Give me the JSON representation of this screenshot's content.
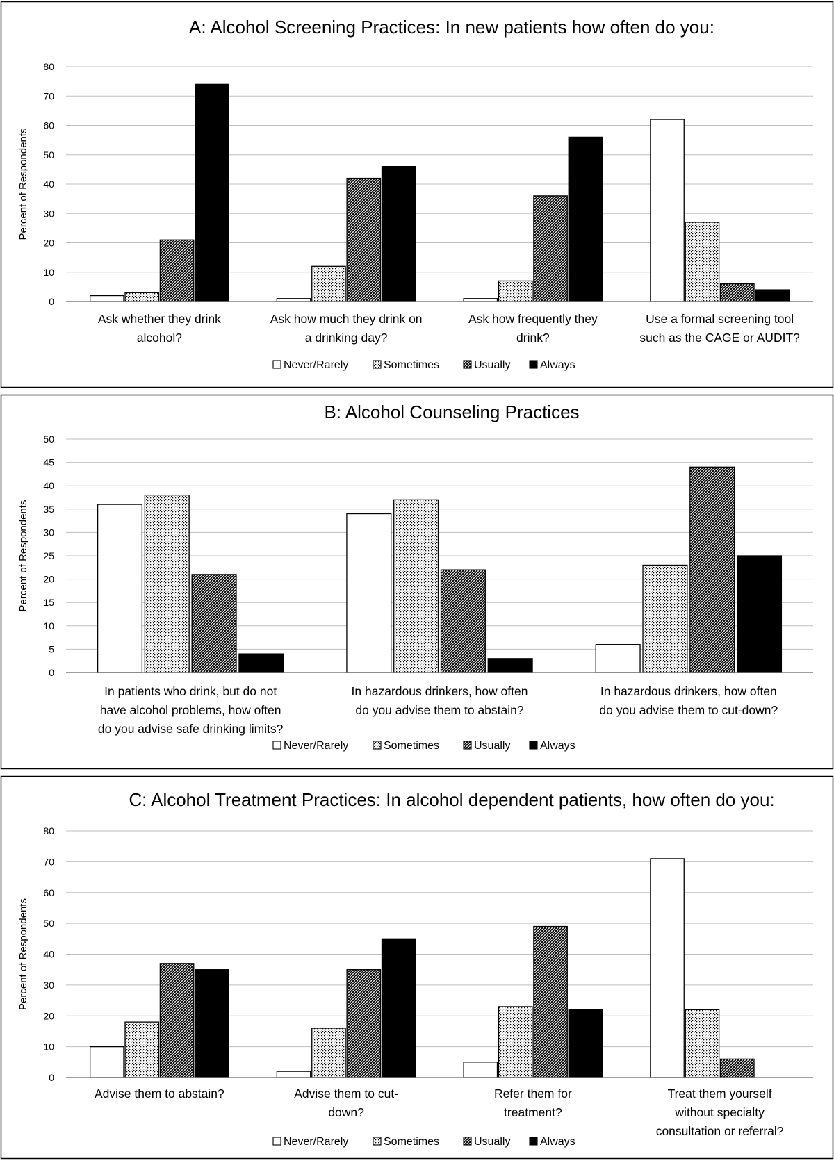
{
  "legend": [
    "Never/Rarely",
    "Sometimes",
    "Usually",
    "Always"
  ],
  "colors": {
    "frame": "#000000",
    "grid": "#bfbfbf",
    "bar_stroke": "#000000"
  },
  "chart_data": [
    {
      "type": "bar",
      "title": "A:  Alcohol Screening Practices: In new patients how often do you:",
      "ylabel": "Percent of Respondents",
      "ylim": [
        0,
        80
      ],
      "ystep": 10,
      "categories": [
        [
          "Ask whether they drink",
          "alcohol?"
        ],
        [
          "Ask how much they drink on",
          "a drinking day?"
        ],
        [
          "Ask how frequently they",
          "drink?"
        ],
        [
          "Use a formal screening tool",
          "such as the CAGE or AUDIT?"
        ]
      ],
      "series": [
        {
          "name": "Never/Rarely",
          "values": [
            2,
            1,
            1,
            62
          ]
        },
        {
          "name": "Sometimes",
          "values": [
            3,
            12,
            7,
            27
          ]
        },
        {
          "name": "Usually",
          "values": [
            21,
            42,
            36,
            6
          ]
        },
        {
          "name": "Always",
          "values": [
            74,
            46,
            56,
            4
          ]
        }
      ],
      "grid": true,
      "legend_position": "bottom"
    },
    {
      "type": "bar",
      "title": "B:  Alcohol Counseling Practices",
      "ylabel": "Percent of Respondents",
      "ylim": [
        0,
        50
      ],
      "ystep": 5,
      "categories": [
        [
          "In patients who drink, but do not",
          "have alcohol problems, how often",
          "do you advise safe drinking limits?"
        ],
        [
          "In hazardous drinkers, how often",
          "do you advise them to abstain?"
        ],
        [
          "In hazardous drinkers, how often",
          "do you advise them to cut-down?"
        ]
      ],
      "series": [
        {
          "name": "Never/Rarely",
          "values": [
            36,
            34,
            6
          ]
        },
        {
          "name": "Sometimes",
          "values": [
            38,
            37,
            23
          ]
        },
        {
          "name": "Usually",
          "values": [
            21,
            22,
            44
          ]
        },
        {
          "name": "Always",
          "values": [
            4,
            3,
            25
          ]
        }
      ],
      "grid": true,
      "legend_position": "bottom"
    },
    {
      "type": "bar",
      "title": "C: Alcohol Treatment Practices: In alcohol dependent patients, how often do you:",
      "ylabel": "Percent of Respondents",
      "ylim": [
        0,
        80
      ],
      "ystep": 10,
      "categories": [
        [
          "Advise them to abstain?"
        ],
        [
          "Advise them to cut-",
          "down?"
        ],
        [
          "Refer them for",
          "treatment?"
        ],
        [
          "Treat them yourself",
          "without specialty",
          "consultation or referral?"
        ]
      ],
      "series": [
        {
          "name": "Never/Rarely",
          "values": [
            10,
            2,
            5,
            71
          ]
        },
        {
          "name": "Sometimes",
          "values": [
            18,
            16,
            23,
            22
          ]
        },
        {
          "name": "Usually",
          "values": [
            37,
            35,
            49,
            6
          ]
        },
        {
          "name": "Always",
          "values": [
            35,
            45,
            22,
            0
          ]
        }
      ],
      "grid": true,
      "legend_position": "bottom"
    }
  ]
}
